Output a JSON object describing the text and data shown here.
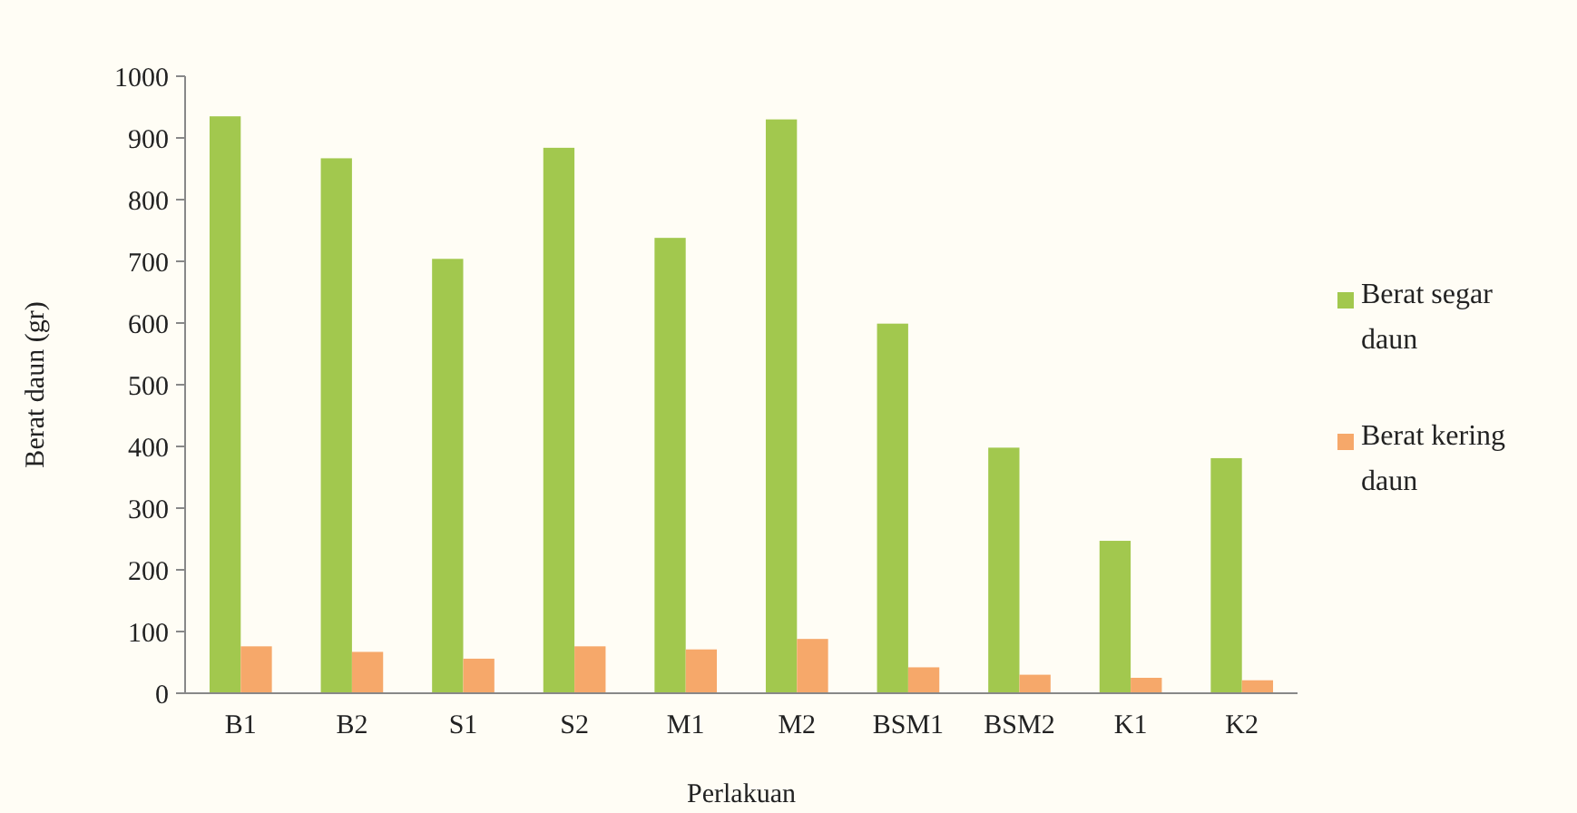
{
  "chart_data": {
    "type": "bar",
    "xlabel": "Perlakuan",
    "ylabel": "Berat daun (gr)",
    "categories": [
      "B1",
      "B2",
      "S1",
      "S2",
      "M1",
      "M2",
      "BSM1",
      "BSM2",
      "K1",
      "K2"
    ],
    "series": [
      {
        "name": "Berat segar daun",
        "color": "#a2c84e",
        "values": [
          935,
          867,
          704,
          884,
          738,
          930,
          599,
          398,
          247,
          381
        ]
      },
      {
        "name": "Berat kering daun",
        "color": "#f6a86a",
        "values": [
          76,
          67,
          56,
          76,
          71,
          88,
          42,
          30,
          25,
          21
        ]
      }
    ],
    "ylim": [
      0,
      1000
    ],
    "yticks": [
      0,
      100,
      200,
      300,
      400,
      500,
      600,
      700,
      800,
      900,
      1000
    ],
    "grid": false,
    "legend": "right"
  }
}
